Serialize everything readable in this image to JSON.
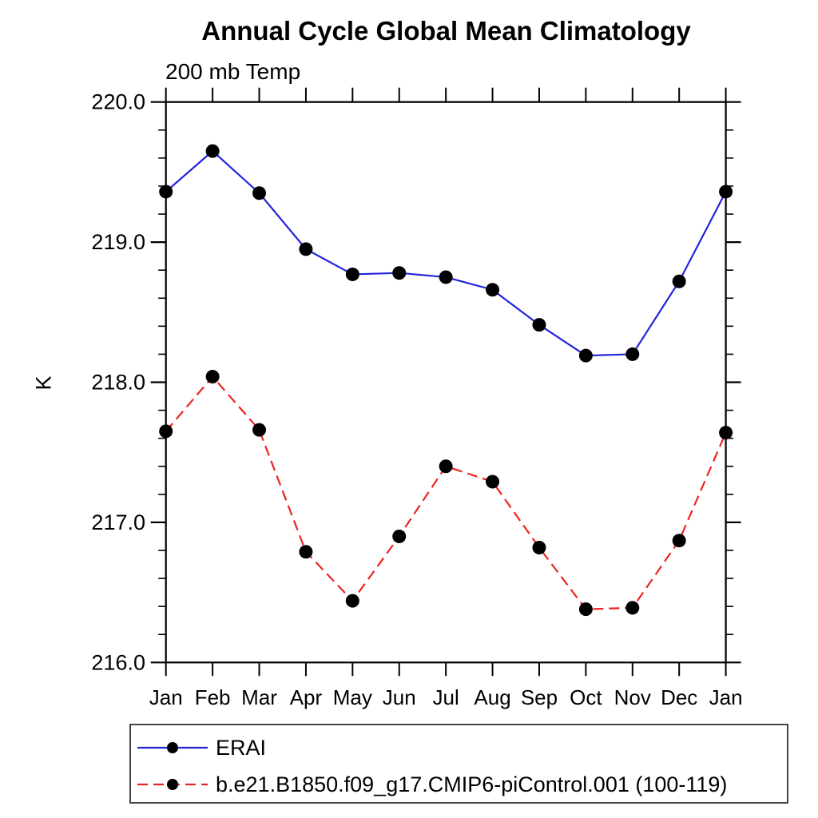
{
  "chart_data": {
    "type": "line",
    "title": "Annual Cycle Global Mean Climatology",
    "subtitle": "200 mb Temp",
    "ylabel": "K",
    "xlabel": "",
    "categories": [
      "Jan",
      "Feb",
      "Mar",
      "Apr",
      "May",
      "Jun",
      "Jul",
      "Aug",
      "Sep",
      "Oct",
      "Nov",
      "Dec",
      "Jan"
    ],
    "ylim": [
      216.0,
      220.0
    ],
    "ytick_major": [
      216.0,
      217.0,
      218.0,
      219.0,
      220.0
    ],
    "ytick_labels": [
      "216.0",
      "217.0",
      "218.0",
      "219.0",
      "220.0"
    ],
    "ytick_minor_step": 0.2,
    "grid": false,
    "legend_position": "bottom-left-box",
    "marker": {
      "shape": "circle",
      "color": "#000000"
    },
    "frame_color": "#000000",
    "background_color": "#ffffff",
    "series": [
      {
        "name": "ERAI",
        "color": "#2222dd",
        "line_style": "solid",
        "values": [
          219.36,
          219.65,
          219.35,
          218.95,
          218.77,
          218.78,
          218.75,
          218.66,
          218.41,
          218.19,
          218.2,
          218.72,
          219.36
        ]
      },
      {
        "name": "b.e21.B1850.f09_g17.CMIP6-piControl.001 (100-119)",
        "color": "#ee2222",
        "line_style": "dashed",
        "values": [
          217.65,
          218.04,
          217.66,
          216.79,
          216.44,
          216.9,
          217.4,
          217.29,
          216.82,
          216.38,
          216.39,
          216.87,
          217.64
        ]
      }
    ]
  }
}
